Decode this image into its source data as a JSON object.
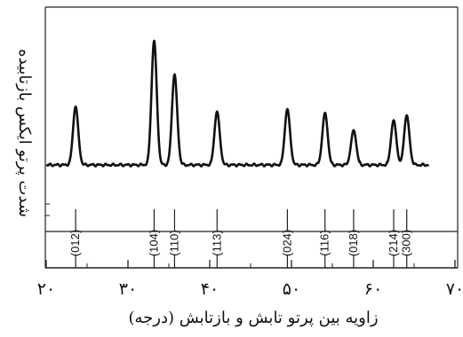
{
  "chart_data": {
    "type": "line",
    "xlabel": "زاویه بین پرتو تابش و بازتابش (درجه)",
    "ylabel": "شدت پرتو ایکس بازتابیده",
    "xlim": [
      20,
      70
    ],
    "x_ticks": [
      {
        "value": 20,
        "label": "۲۰"
      },
      {
        "value": 30,
        "label": "۳۰"
      },
      {
        "value": 40,
        "label": "۴۰"
      },
      {
        "value": 50,
        "label": "۵۰"
      },
      {
        "value": 60,
        "label": "۶۰"
      },
      {
        "value": 70,
        "label": "۷۰"
      }
    ],
    "peaks": [
      {
        "x": 23.6,
        "intensity": 0.47,
        "label": "(012)"
      },
      {
        "x": 33.2,
        "intensity": 1.0,
        "label": "(104)"
      },
      {
        "x": 35.7,
        "intensity": 0.73,
        "label": "(110)"
      },
      {
        "x": 40.9,
        "intensity": 0.43,
        "label": "(113)"
      },
      {
        "x": 49.5,
        "intensity": 0.45,
        "label": "(024)"
      },
      {
        "x": 54.1,
        "intensity": 0.42,
        "label": "(116)"
      },
      {
        "x": 57.6,
        "intensity": 0.28,
        "label": "(018)"
      },
      {
        "x": 62.5,
        "intensity": 0.36,
        "label": "(214)"
      },
      {
        "x": 64.1,
        "intensity": 0.4,
        "label": "(300)"
      }
    ]
  }
}
